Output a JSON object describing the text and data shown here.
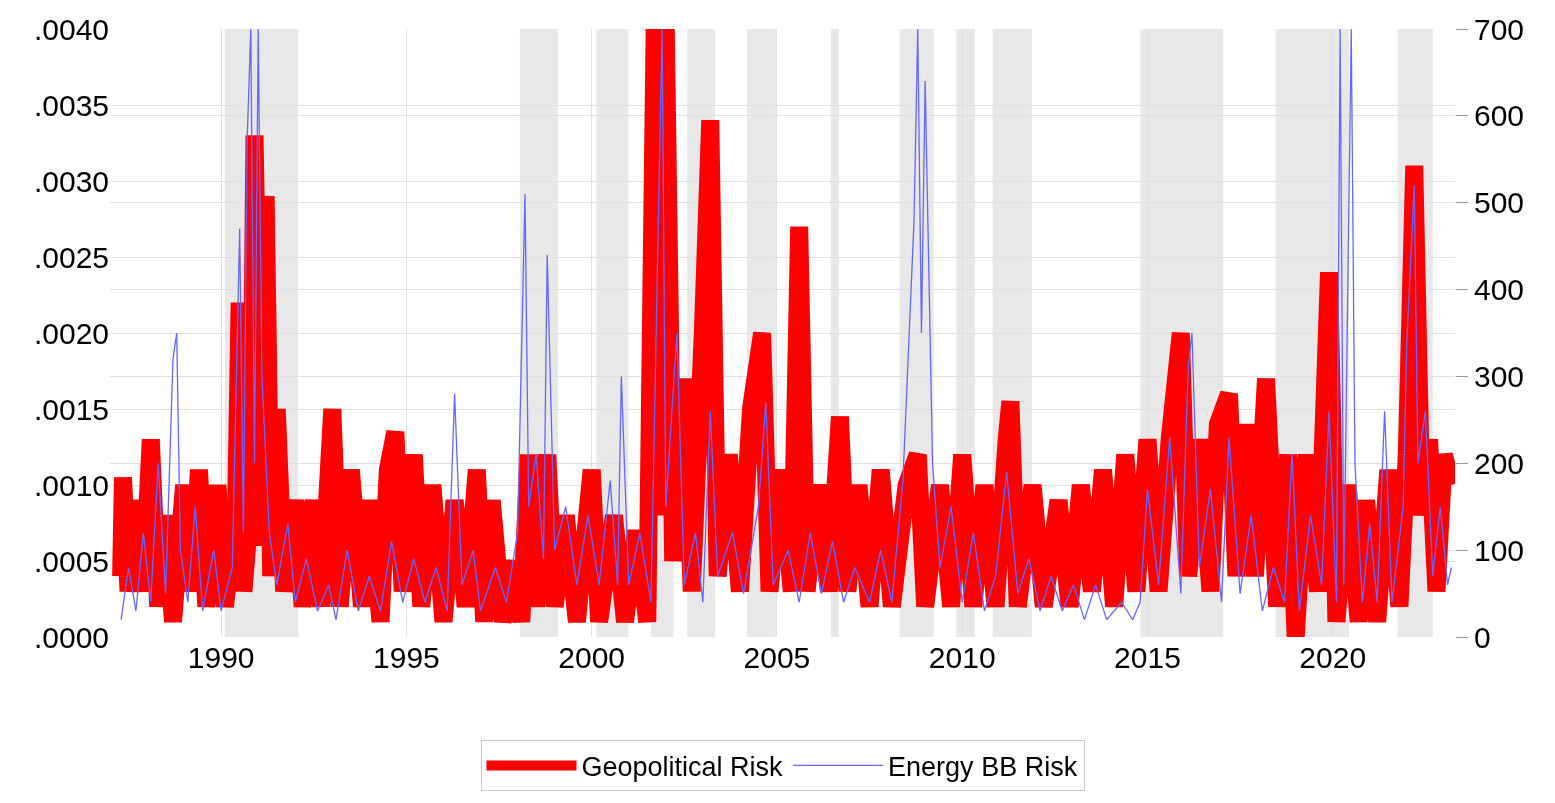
{
  "chart_data": {
    "type": "line",
    "xlim": [
      1987.0,
      2023.3
    ],
    "xticks": [
      1990,
      1995,
      2000,
      2005,
      2010,
      2015,
      2020
    ],
    "ylim": [
      0,
      0.004
    ],
    "yticks": [
      {
        "value": 0,
        "label": ".0000"
      },
      {
        "value": 0.0005,
        "label": ".0005"
      },
      {
        "value": 0.001,
        "label": ".0010"
      },
      {
        "value": 0.0015,
        "label": ".0015"
      },
      {
        "value": 0.002,
        "label": ".0020"
      },
      {
        "value": 0.0025,
        "label": ".0025"
      },
      {
        "value": 0.003,
        "label": ".0030"
      },
      {
        "value": 0.0035,
        "label": ".0035"
      },
      {
        "value": 0.004,
        "label": ".0040"
      }
    ],
    "y2lim": [
      0,
      700
    ],
    "y2ticks": [
      0,
      100,
      200,
      300,
      400,
      500,
      600,
      700
    ],
    "grid": true,
    "legend": "bottom",
    "marker": "none",
    "line_style": "solid",
    "bands": [
      {
        "axis": "x",
        "from": 1990.1,
        "to": 1992.08,
        "color": "#e8e8e8"
      },
      {
        "axis": "x",
        "from": 1998.06,
        "to": 1999.09,
        "color": "#e8e8e8"
      },
      {
        "axis": "x",
        "from": 2000.13,
        "to": 2000.99,
        "color": "#e8e8e8"
      },
      {
        "axis": "x",
        "from": 2001.6,
        "to": 2002.21,
        "color": "#e8e8e8"
      },
      {
        "axis": "x",
        "from": 2002.58,
        "to": 2003.33,
        "color": "#e8e8e8"
      },
      {
        "axis": "x",
        "from": 2004.19,
        "to": 2004.97,
        "color": "#e8e8e8"
      },
      {
        "axis": "x",
        "from": 2006.45,
        "to": 2006.67,
        "color": "#e8e8e8"
      },
      {
        "axis": "x",
        "from": 2008.31,
        "to": 2009.23,
        "color": "#e8e8e8"
      },
      {
        "axis": "x",
        "from": 2009.84,
        "to": 2010.34,
        "color": "#e8e8e8"
      },
      {
        "axis": "x",
        "from": 2010.82,
        "to": 2011.88,
        "color": "#e8e8e8"
      },
      {
        "axis": "x",
        "from": 2014.81,
        "to": 2017.04,
        "color": "#e8e8e8"
      },
      {
        "axis": "x",
        "from": 2018.46,
        "to": 2020.44,
        "color": "#e8e8e8"
      },
      {
        "axis": "x",
        "from": 2021.75,
        "to": 2022.7,
        "color": "#e8e8e8"
      }
    ],
    "series": [
      {
        "name": "Geopolitical Risk",
        "color": "#ff0000",
        "x": [
          1987.3,
          1987.35,
          1987.5,
          1987.7,
          1987.9,
          1988.1,
          1988.3,
          1988.5,
          1988.7,
          1989.0,
          1989.2,
          1989.4,
          1989.6,
          1989.9,
          1990.1,
          1990.4,
          1990.5,
          1990.6,
          1990.8,
          1990.9,
          1991.1,
          1991.2,
          1991.35,
          1991.5,
          1991.7,
          1992.0,
          1992.2,
          1992.5,
          1992.7,
          1993.0,
          1993.2,
          1993.5,
          1993.8,
          1994.0,
          1994.3,
          1994.5,
          1994.7,
          1994.9,
          1995.2,
          1995.4,
          1995.7,
          1996.0,
          1996.3,
          1996.6,
          1996.9,
          1997.1,
          1997.3,
          1997.6,
          1997.9,
          1998.1,
          1998.3,
          1998.5,
          1998.8,
          1999.0,
          1999.3,
          1999.6,
          2000.0,
          2000.2,
          2000.6,
          2000.9,
          2001.2,
          2001.5,
          2001.7,
          2001.9,
          2002.0,
          2002.2,
          2002.5,
          2002.7,
          2003.0,
          2003.2,
          2003.4,
          2003.7,
          2004.0,
          2004.3,
          2004.6,
          2004.8,
          2005.1,
          2005.4,
          2005.6,
          2005.8,
          2006.1,
          2006.4,
          2006.7,
          2006.9,
          2007.2,
          2007.5,
          2007.8,
          2008.1,
          2008.5,
          2008.8,
          2009.0,
          2009.4,
          2009.7,
          2010.0,
          2010.3,
          2010.6,
          2010.9,
          2011.2,
          2011.3,
          2011.5,
          2011.9,
          2012.2,
          2012.6,
          2012.9,
          2013.2,
          2013.5,
          2013.8,
          2014.1,
          2014.4,
          2014.7,
          2015.0,
          2015.3,
          2015.6,
          2015.9,
          2016.1,
          2016.4,
          2016.7,
          2016.9,
          2017.2,
          2017.4,
          2017.7,
          2017.9,
          2018.2,
          2018.5,
          2018.8,
          2019.0,
          2019.3,
          2019.6,
          2019.9,
          2020.1,
          2020.4,
          2020.7,
          2020.9,
          2021.2,
          2021.5,
          2021.8,
          2022.0,
          2022.2,
          2022.4,
          2022.6,
          2022.8,
          2023.0,
          2023.2
        ],
        "values": [
          0.0004,
          0.00105,
          0.0003,
          0.0009,
          0.0003,
          0.0013,
          0.0002,
          0.0008,
          0.0001,
          0.001,
          0.0003,
          0.0011,
          0.0002,
          0.001,
          0.0002,
          0.0008,
          0.0022,
          0.0003,
          0.0009,
          0.0033,
          0.0006,
          0.0029,
          0.0004,
          0.0015,
          0.0003,
          0.0009,
          0.0002,
          0.0009,
          0.0002,
          0.0015,
          0.0002,
          0.0011,
          0.0002,
          0.0009,
          0.0001,
          0.0011,
          0.00135,
          0.0003,
          0.0012,
          0.0002,
          0.001,
          0.0001,
          0.0009,
          0.0002,
          0.0011,
          0.0001,
          0.0009,
          0.0001,
          0.0005,
          0.0001,
          0.0012,
          0.0002,
          0.0012,
          0.0002,
          0.0008,
          0.0001,
          0.0011,
          0.0001,
          0.0008,
          0.0001,
          0.0007,
          0.0001,
          0.004,
          0.0008,
          0.004,
          0.0005,
          0.0017,
          0.0003,
          0.002,
          0.0034,
          0.0004,
          0.0012,
          0.0003,
          0.0015,
          0.002,
          0.0003,
          0.0011,
          0.0003,
          0.0027,
          0.0003,
          0.001,
          0.0003,
          0.00145,
          0.0003,
          0.001,
          0.0002,
          0.0011,
          0.0002,
          0.001,
          0.0012,
          0.0002,
          0.001,
          0.0002,
          0.0012,
          0.0002,
          0.001,
          0.0002,
          0.0013,
          0.00155,
          0.0002,
          0.001,
          0.0002,
          0.0009,
          0.0002,
          0.001,
          0.0003,
          0.0011,
          0.0002,
          0.0012,
          0.0003,
          0.0013,
          0.0003,
          0.0013,
          0.002,
          0.0004,
          0.0013,
          0.0003,
          0.0014,
          0.0016,
          0.0004,
          0.0014,
          0.0004,
          0.0017,
          0.0002,
          0.0012,
          0.0,
          0.0012,
          0.0003,
          0.0024,
          0.0001,
          0.001,
          0.0001,
          0.0009,
          0.0001,
          0.0011,
          0.0002,
          0.0012,
          0.0031,
          0.0008,
          0.0013,
          0.0003,
          0.0012,
          0.001
        ]
      },
      {
        "name": "Energy BB Risk",
        "color": "#6666ff",
        "axis": "y2",
        "x": [
          1987.3,
          1987.5,
          1987.7,
          1987.9,
          1988.1,
          1988.3,
          1988.5,
          1988.7,
          1988.8,
          1988.9,
          1989.1,
          1989.3,
          1989.5,
          1989.8,
          1990.0,
          1990.3,
          1990.5,
          1990.6,
          1990.7,
          1990.8,
          1990.9,
          1991.0,
          1991.1,
          1991.3,
          1991.5,
          1991.8,
          1992.0,
          1992.3,
          1992.6,
          1992.9,
          1993.1,
          1993.4,
          1993.7,
          1994.0,
          1994.3,
          1994.6,
          1994.9,
          1995.2,
          1995.5,
          1995.8,
          1996.1,
          1996.3,
          1996.5,
          1996.8,
          1997.0,
          1997.4,
          1997.7,
          1998.0,
          1998.2,
          1998.3,
          1998.5,
          1998.7,
          1998.8,
          1999.0,
          1999.3,
          1999.6,
          1999.9,
          2000.2,
          2000.5,
          2000.7,
          2000.8,
          2001.0,
          2001.3,
          2001.6,
          2001.9,
          2002.0,
          2002.3,
          2002.5,
          2002.8,
          2003.0,
          2003.2,
          2003.4,
          2003.8,
          2004.1,
          2004.5,
          2004.7,
          2004.9,
          2005.3,
          2005.6,
          2005.9,
          2006.2,
          2006.5,
          2006.8,
          2007.1,
          2007.5,
          2007.8,
          2008.1,
          2008.4,
          2008.7,
          2008.8,
          2008.9,
          2009.0,
          2009.2,
          2009.4,
          2009.7,
          2010.0,
          2010.3,
          2010.6,
          2010.9,
          2011.2,
          2011.5,
          2011.8,
          2012.1,
          2012.4,
          2012.7,
          2013.0,
          2013.3,
          2013.6,
          2013.9,
          2014.3,
          2014.6,
          2014.8,
          2015.0,
          2015.3,
          2015.6,
          2015.9,
          2016.1,
          2016.2,
          2016.4,
          2016.7,
          2017.0,
          2017.2,
          2017.5,
          2017.8,
          2018.1,
          2018.4,
          2018.7,
          2018.9,
          2019.1,
          2019.4,
          2019.7,
          2019.9,
          2020.1,
          2020.2,
          2020.3,
          2020.5,
          2020.6,
          2020.8,
          2021.0,
          2021.2,
          2021.4,
          2021.6,
          2021.9,
          2022.0,
          2022.2,
          2022.3,
          2022.5,
          2022.7,
          2022.9,
          2023.1,
          2023.2
        ],
        "values": [
          20,
          80,
          30,
          120,
          40,
          200,
          50,
          320,
          350,
          100,
          40,
          150,
          30,
          100,
          30,
          80,
          470,
          120,
          570,
          700,
          200,
          700,
          300,
          120,
          60,
          130,
          40,
          90,
          30,
          60,
          20,
          100,
          30,
          70,
          30,
          110,
          40,
          90,
          40,
          80,
          30,
          280,
          60,
          100,
          30,
          80,
          40,
          120,
          510,
          150,
          210,
          90,
          440,
          100,
          150,
          60,
          140,
          60,
          180,
          60,
          300,
          60,
          120,
          40,
          700,
          150,
          350,
          60,
          120,
          40,
          260,
          70,
          120,
          50,
          150,
          270,
          60,
          100,
          40,
          120,
          50,
          110,
          40,
          80,
          40,
          100,
          40,
          180,
          480,
          700,
          350,
          640,
          200,
          80,
          150,
          40,
          120,
          30,
          70,
          190,
          50,
          90,
          30,
          70,
          30,
          60,
          20,
          60,
          20,
          40,
          20,
          40,
          170,
          60,
          230,
          50,
          310,
          350,
          80,
          170,
          40,
          230,
          50,
          140,
          30,
          80,
          40,
          210,
          30,
          140,
          60,
          260,
          40,
          700,
          60,
          700,
          200,
          40,
          130,
          40,
          260,
          40,
          150,
          340,
          520,
          200,
          260,
          70,
          150,
          60,
          80
        ]
      }
    ]
  }
}
